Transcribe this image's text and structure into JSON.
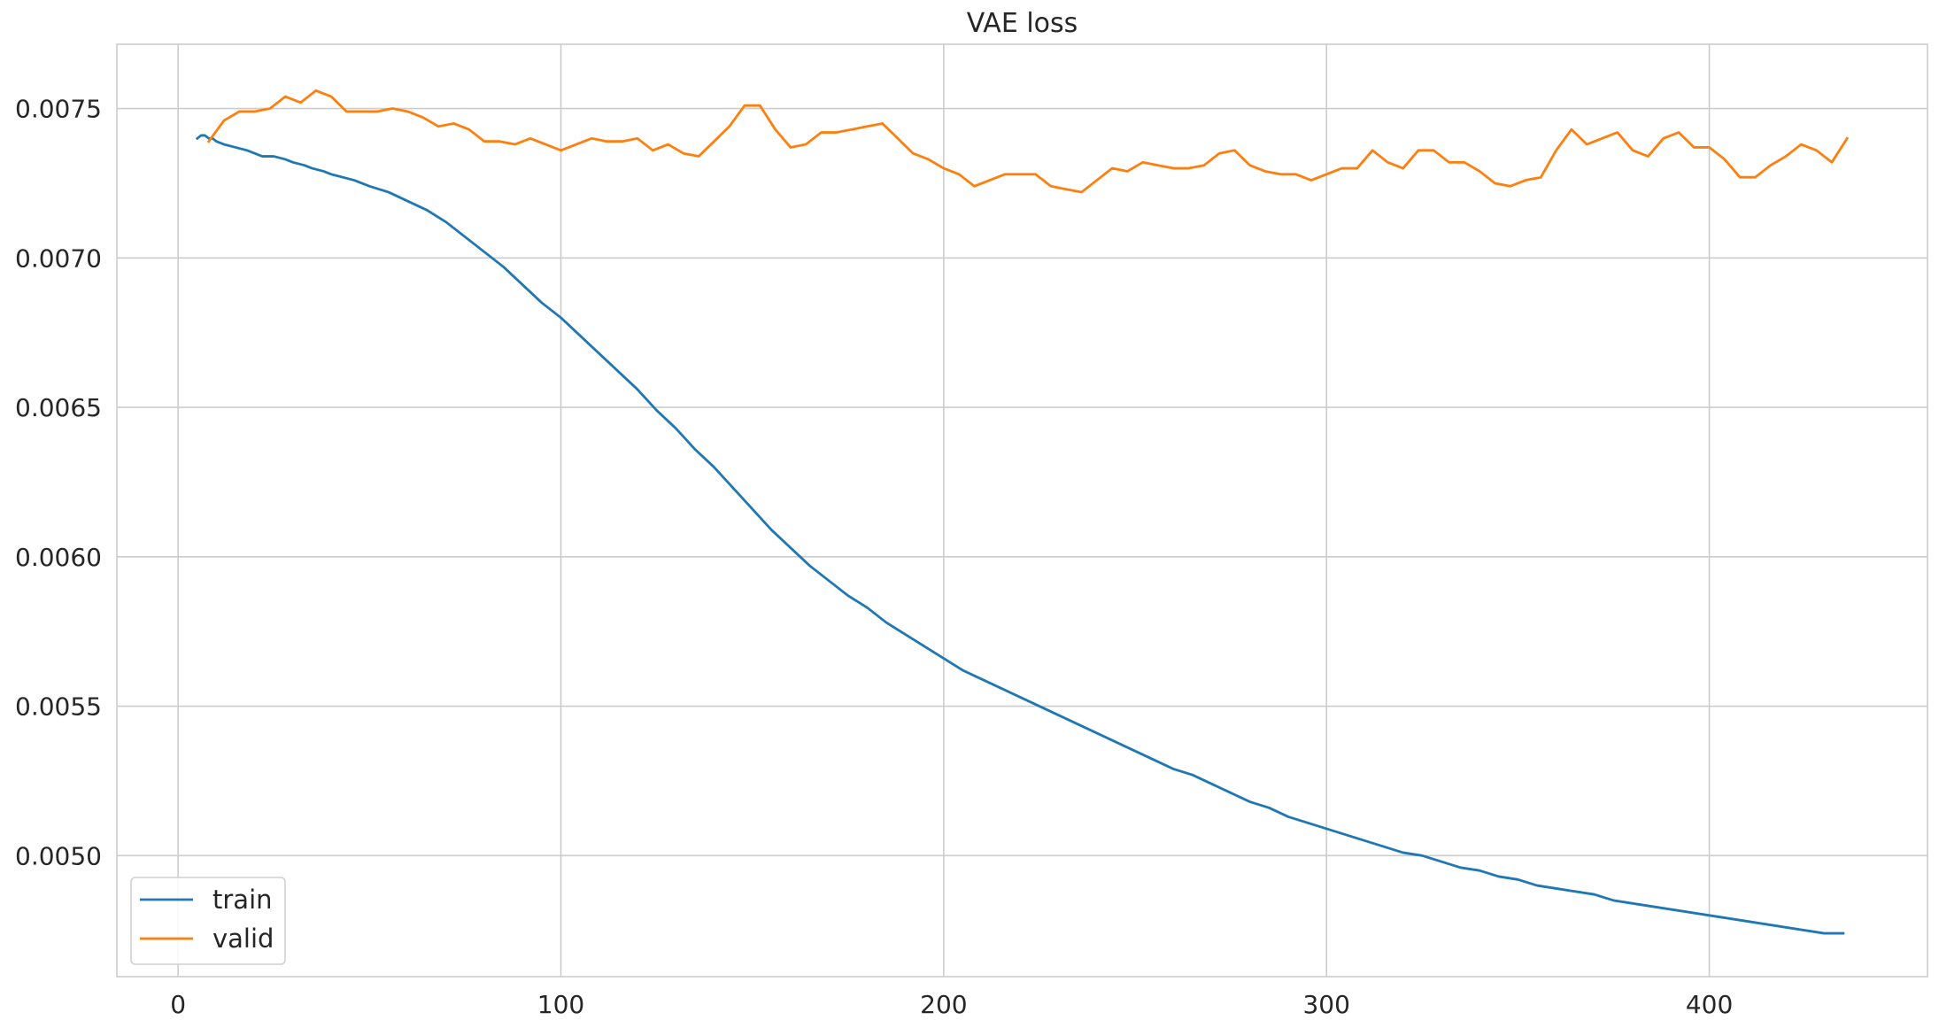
{
  "chart_data": {
    "type": "line",
    "title": "VAE loss",
    "xlabel": "",
    "ylabel": "",
    "xlim": [
      -16,
      457
    ],
    "ylim": [
      0.004595,
      0.007715
    ],
    "xticks": [
      0,
      100,
      200,
      300,
      400
    ],
    "yticks": [
      0.005,
      0.0055,
      0.006,
      0.0065,
      0.007,
      0.0075
    ],
    "xtick_labels": [
      "0",
      "100",
      "200",
      "300",
      "400"
    ],
    "ytick_labels": [
      "0.0050",
      "0.0055",
      "0.0060",
      "0.0065",
      "0.0070",
      "0.0075"
    ],
    "grid": true,
    "legend": {
      "placement": "lower-left",
      "entries": [
        "train",
        "valid"
      ]
    },
    "series": [
      {
        "name": "train",
        "color": "#1f77b4",
        "x": [
          5,
          6,
          7,
          8,
          9,
          10,
          12,
          15,
          18,
          20,
          22,
          25,
          28,
          30,
          33,
          35,
          38,
          40,
          43,
          46,
          50,
          55,
          60,
          65,
          70,
          75,
          80,
          85,
          90,
          95,
          100,
          105,
          110,
          115,
          120,
          125,
          130,
          135,
          140,
          145,
          150,
          155,
          160,
          165,
          170,
          175,
          180,
          185,
          190,
          195,
          200,
          205,
          210,
          215,
          220,
          225,
          230,
          235,
          240,
          245,
          250,
          255,
          260,
          265,
          270,
          275,
          280,
          285,
          290,
          295,
          300,
          305,
          310,
          315,
          320,
          325,
          330,
          335,
          340,
          345,
          350,
          355,
          360,
          365,
          370,
          375,
          380,
          385,
          390,
          395,
          400,
          405,
          410,
          415,
          420,
          425,
          430,
          435
        ],
        "values": [
          0.0074,
          0.00741,
          0.00741,
          0.0074,
          0.0074,
          0.00739,
          0.00738,
          0.00737,
          0.00736,
          0.00735,
          0.00734,
          0.00734,
          0.00733,
          0.00732,
          0.00731,
          0.0073,
          0.00729,
          0.00728,
          0.00727,
          0.00726,
          0.00724,
          0.00722,
          0.00719,
          0.00716,
          0.00712,
          0.00707,
          0.00702,
          0.00697,
          0.00691,
          0.00685,
          0.0068,
          0.00674,
          0.00668,
          0.00662,
          0.00656,
          0.00649,
          0.00643,
          0.00636,
          0.0063,
          0.00623,
          0.00616,
          0.00609,
          0.00603,
          0.00597,
          0.00592,
          0.00587,
          0.00583,
          0.00578,
          0.00574,
          0.0057,
          0.00566,
          0.00562,
          0.00559,
          0.00556,
          0.00553,
          0.0055,
          0.00547,
          0.00544,
          0.00541,
          0.00538,
          0.00535,
          0.00532,
          0.00529,
          0.00527,
          0.00524,
          0.00521,
          0.00518,
          0.00516,
          0.00513,
          0.00511,
          0.00509,
          0.00507,
          0.00505,
          0.00503,
          0.00501,
          0.005,
          0.00498,
          0.00496,
          0.00495,
          0.00493,
          0.00492,
          0.0049,
          0.00489,
          0.00488,
          0.00487,
          0.00485,
          0.00484,
          0.00483,
          0.00482,
          0.00481,
          0.0048,
          0.00479,
          0.00478,
          0.00477,
          0.00476,
          0.00475,
          0.00474,
          0.00474
        ]
      },
      {
        "name": "valid",
        "color": "#ff7f0e",
        "x": [
          8,
          12,
          16,
          20,
          24,
          28,
          32,
          36,
          40,
          44,
          48,
          52,
          56,
          60,
          64,
          68,
          72,
          76,
          80,
          84,
          88,
          92,
          96,
          100,
          104,
          108,
          112,
          116,
          120,
          124,
          128,
          132,
          136,
          140,
          144,
          148,
          152,
          156,
          160,
          164,
          168,
          172,
          176,
          180,
          184,
          188,
          192,
          196,
          200,
          204,
          208,
          212,
          216,
          220,
          224,
          228,
          232,
          236,
          240,
          244,
          248,
          252,
          256,
          260,
          264,
          268,
          272,
          276,
          280,
          284,
          288,
          292,
          296,
          300,
          304,
          308,
          312,
          316,
          320,
          324,
          328,
          332,
          336,
          340,
          344,
          348,
          352,
          356,
          360,
          364,
          368,
          372,
          376,
          380,
          384,
          388,
          392,
          396,
          400,
          404,
          408,
          412,
          416,
          420,
          424,
          428,
          432,
          436
        ],
        "values": [
          0.00739,
          0.00746,
          0.00749,
          0.00749,
          0.0075,
          0.00754,
          0.00752,
          0.00756,
          0.00754,
          0.00749,
          0.00749,
          0.00749,
          0.0075,
          0.00749,
          0.00747,
          0.00744,
          0.00745,
          0.00743,
          0.00739,
          0.00739,
          0.00738,
          0.0074,
          0.00738,
          0.00736,
          0.00738,
          0.0074,
          0.00739,
          0.00739,
          0.0074,
          0.00736,
          0.00738,
          0.00735,
          0.00734,
          0.00739,
          0.00744,
          0.00751,
          0.00751,
          0.00743,
          0.00737,
          0.00738,
          0.00742,
          0.00742,
          0.00743,
          0.00744,
          0.00745,
          0.0074,
          0.00735,
          0.00733,
          0.0073,
          0.00728,
          0.00724,
          0.00726,
          0.00728,
          0.00728,
          0.00728,
          0.00724,
          0.00723,
          0.00722,
          0.00726,
          0.0073,
          0.00729,
          0.00732,
          0.00731,
          0.0073,
          0.0073,
          0.00731,
          0.00735,
          0.00736,
          0.00731,
          0.00729,
          0.00728,
          0.00728,
          0.00726,
          0.00728,
          0.0073,
          0.0073,
          0.00736,
          0.00732,
          0.0073,
          0.00736,
          0.00736,
          0.00732,
          0.00732,
          0.00729,
          0.00725,
          0.00724,
          0.00726,
          0.00727,
          0.00736,
          0.00743,
          0.00738,
          0.0074,
          0.00742,
          0.00736,
          0.00734,
          0.0074,
          0.00742,
          0.00737,
          0.00737,
          0.00733,
          0.00727,
          0.00727,
          0.00731,
          0.00734,
          0.00738,
          0.00736,
          0.00732,
          0.0074
        ]
      }
    ]
  }
}
